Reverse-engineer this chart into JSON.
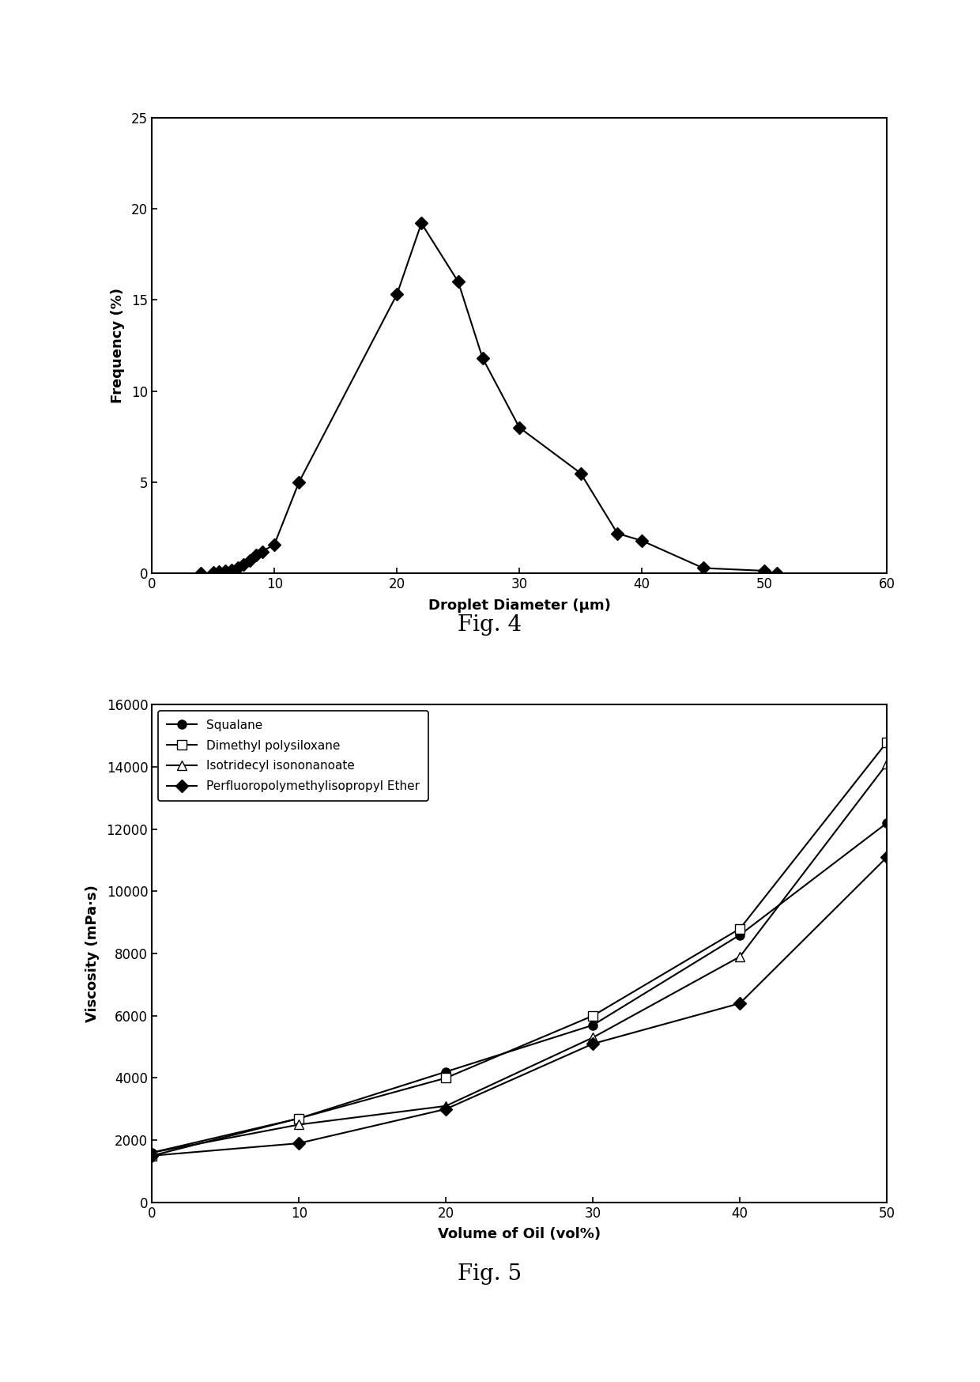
{
  "fig4": {
    "x": [
      4,
      5,
      5.5,
      6,
      6.5,
      7,
      7.5,
      8,
      8.5,
      9,
      10,
      12,
      20,
      22,
      25,
      27,
      30,
      35,
      38,
      40,
      45,
      50,
      51
    ],
    "y": [
      0.0,
      0.05,
      0.1,
      0.15,
      0.2,
      0.3,
      0.5,
      0.7,
      1.0,
      1.2,
      1.6,
      5.0,
      15.3,
      19.2,
      16.0,
      11.8,
      8.0,
      5.5,
      2.2,
      1.8,
      0.3,
      0.15,
      0.0
    ],
    "xlabel": "Droplet Diameter (μm)",
    "ylabel": "Frequency (%)",
    "xlim": [
      0,
      60
    ],
    "ylim": [
      0,
      25
    ],
    "xticks": [
      0,
      10,
      20,
      30,
      40,
      50,
      60
    ],
    "yticks": [
      0,
      5,
      10,
      15,
      20,
      25
    ],
    "fig_label": "Fig. 4",
    "marker": "D",
    "color": "black"
  },
  "fig5": {
    "squalane": {
      "x": [
        0,
        10,
        20,
        30,
        40,
        50
      ],
      "y": [
        1600,
        2700,
        4200,
        5700,
        8600,
        12200
      ],
      "label": "Squalane",
      "marker": "o",
      "linestyle": "-",
      "fillstyle": "full"
    },
    "dimethyl": {
      "x": [
        0,
        10,
        20,
        30,
        40,
        50
      ],
      "y": [
        1500,
        2700,
        4000,
        6000,
        8800,
        14800
      ],
      "label": "Dimethyl polysiloxane",
      "marker": "s",
      "linestyle": "-",
      "fillstyle": "none"
    },
    "isotridecyl": {
      "x": [
        0,
        10,
        20,
        30,
        40,
        50
      ],
      "y": [
        1600,
        2500,
        3100,
        5300,
        7900,
        14100
      ],
      "label": "Isotridecyl isononanoate",
      "marker": "^",
      "linestyle": "-",
      "fillstyle": "none"
    },
    "perfluoro": {
      "x": [
        0,
        10,
        20,
        30,
        40,
        50
      ],
      "y": [
        1500,
        1900,
        3000,
        5100,
        6400,
        11100
      ],
      "label": "Perfluoropolymethylisopropyl Ether",
      "marker": "D",
      "linestyle": "-",
      "fillstyle": "full"
    },
    "xlabel": "Volume of Oil (vol%)",
    "ylabel": "Viscosity (mPa·s)",
    "xlim": [
      0,
      50
    ],
    "ylim": [
      0,
      16000
    ],
    "xticks": [
      0,
      10,
      20,
      30,
      40,
      50
    ],
    "yticks": [
      0,
      2000,
      4000,
      6000,
      8000,
      10000,
      12000,
      14000,
      16000
    ],
    "fig_label": "Fig. 5",
    "color": "black"
  },
  "background_color": "#ffffff",
  "font_size_label": 13,
  "font_size_tick": 12,
  "font_size_figlabel": 20
}
